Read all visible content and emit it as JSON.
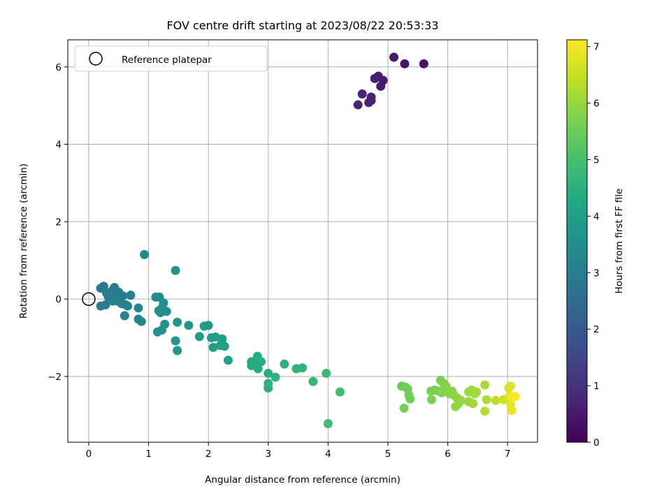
{
  "chart_data": {
    "type": "scatter",
    "title": "FOV centre drift starting at 2023/08/22 20:53:33",
    "xlabel": "Angular distance from reference (arcmin)",
    "ylabel": "Rotation from reference (arcmin)",
    "xlim": [
      -0.35,
      7.5
    ],
    "ylim": [
      -3.7,
      6.7
    ],
    "x_ticks": [
      0,
      1,
      2,
      3,
      4,
      5,
      6,
      7
    ],
    "y_ticks": [
      -2,
      0,
      2,
      4,
      6
    ],
    "grid": true,
    "legend": {
      "placement": "top-left",
      "entries": [
        "Reference platepar"
      ]
    },
    "reference_point": {
      "x": 0,
      "y": 0
    },
    "colorbar": {
      "label": "Hours from first FF file",
      "colormap": "viridis",
      "range": [
        0,
        7.12
      ],
      "ticks": [
        0,
        1,
        2,
        3,
        4,
        5,
        6,
        7
      ]
    },
    "points": [
      {
        "x": 4.5,
        "y": 5.02,
        "c": 0.75
      },
      {
        "x": 4.57,
        "y": 5.3,
        "c": 0.72
      },
      {
        "x": 4.68,
        "y": 5.08,
        "c": 0.7
      },
      {
        "x": 4.72,
        "y": 5.22,
        "c": 0.68
      },
      {
        "x": 4.72,
        "y": 5.13,
        "c": 0.65
      },
      {
        "x": 4.78,
        "y": 5.7,
        "c": 0.62
      },
      {
        "x": 4.84,
        "y": 5.76,
        "c": 0.6
      },
      {
        "x": 4.88,
        "y": 5.5,
        "c": 0.58
      },
      {
        "x": 4.92,
        "y": 5.65,
        "c": 0.55
      },
      {
        "x": 5.1,
        "y": 6.25,
        "c": 0.5
      },
      {
        "x": 5.28,
        "y": 6.08,
        "c": 0.45
      },
      {
        "x": 5.6,
        "y": 6.08,
        "c": 0.4
      },
      {
        "x": 0.2,
        "y": 0.28,
        "c": 2.85
      },
      {
        "x": 0.25,
        "y": 0.33,
        "c": 2.85
      },
      {
        "x": 0.2,
        "y": -0.18,
        "c": 2.95
      },
      {
        "x": 0.28,
        "y": -0.15,
        "c": 2.95
      },
      {
        "x": 0.3,
        "y": 0.15,
        "c": 2.9
      },
      {
        "x": 0.33,
        "y": 0.05,
        "c": 2.9
      },
      {
        "x": 0.38,
        "y": 0.2,
        "c": 2.92
      },
      {
        "x": 0.4,
        "y": -0.05,
        "c": 3.0
      },
      {
        "x": 0.43,
        "y": 0.3,
        "c": 2.92
      },
      {
        "x": 0.45,
        "y": 0.05,
        "c": 3.0
      },
      {
        "x": 0.48,
        "y": -0.05,
        "c": 3.05
      },
      {
        "x": 0.5,
        "y": 0.18,
        "c": 3.0
      },
      {
        "x": 0.52,
        "y": 0.0,
        "c": 3.05
      },
      {
        "x": 0.55,
        "y": -0.12,
        "c": 3.08
      },
      {
        "x": 0.57,
        "y": 0.08,
        "c": 3.05
      },
      {
        "x": 0.6,
        "y": -0.43,
        "c": 3.15
      },
      {
        "x": 0.62,
        "y": -0.15,
        "c": 3.1
      },
      {
        "x": 0.65,
        "y": -0.18,
        "c": 3.12
      },
      {
        "x": 0.7,
        "y": 0.1,
        "c": 3.1
      },
      {
        "x": 0.83,
        "y": -0.23,
        "c": 3.25
      },
      {
        "x": 0.83,
        "y": -0.52,
        "c": 3.3
      },
      {
        "x": 0.88,
        "y": -0.58,
        "c": 3.32
      },
      {
        "x": 0.93,
        "y": 1.15,
        "c": 3.35
      },
      {
        "x": 1.12,
        "y": 0.05,
        "c": 3.45
      },
      {
        "x": 1.15,
        "y": -0.85,
        "c": 3.55
      },
      {
        "x": 1.17,
        "y": -0.3,
        "c": 3.5
      },
      {
        "x": 1.18,
        "y": 0.05,
        "c": 3.48
      },
      {
        "x": 1.2,
        "y": -0.35,
        "c": 3.52
      },
      {
        "x": 1.22,
        "y": -0.8,
        "c": 3.58
      },
      {
        "x": 1.23,
        "y": -0.22,
        "c": 3.52
      },
      {
        "x": 1.25,
        "y": -0.1,
        "c": 3.52
      },
      {
        "x": 1.27,
        "y": -0.65,
        "c": 3.58
      },
      {
        "x": 1.3,
        "y": -0.32,
        "c": 3.55
      },
      {
        "x": 1.45,
        "y": 0.74,
        "c": 3.55
      },
      {
        "x": 1.45,
        "y": -1.08,
        "c": 3.7
      },
      {
        "x": 1.48,
        "y": -1.33,
        "c": 3.72
      },
      {
        "x": 1.48,
        "y": -0.6,
        "c": 3.65
      },
      {
        "x": 1.67,
        "y": -0.68,
        "c": 3.75
      },
      {
        "x": 1.85,
        "y": -0.97,
        "c": 3.85
      },
      {
        "x": 1.93,
        "y": -0.7,
        "c": 3.85
      },
      {
        "x": 2.0,
        "y": -0.68,
        "c": 3.88
      },
      {
        "x": 2.05,
        "y": -1.0,
        "c": 3.92
      },
      {
        "x": 2.08,
        "y": -1.25,
        "c": 3.95
      },
      {
        "x": 2.12,
        "y": -0.98,
        "c": 3.95
      },
      {
        "x": 2.2,
        "y": -1.2,
        "c": 4.0
      },
      {
        "x": 2.23,
        "y": -1.03,
        "c": 4.0
      },
      {
        "x": 2.27,
        "y": -1.22,
        "c": 4.02
      },
      {
        "x": 2.33,
        "y": -1.58,
        "c": 4.1
      },
      {
        "x": 2.72,
        "y": -1.62,
        "c": 4.3
      },
      {
        "x": 2.72,
        "y": -1.72,
        "c": 4.32
      },
      {
        "x": 2.8,
        "y": -1.7,
        "c": 4.35
      },
      {
        "x": 2.82,
        "y": -1.48,
        "c": 4.35
      },
      {
        "x": 2.83,
        "y": -1.8,
        "c": 4.38
      },
      {
        "x": 2.88,
        "y": -1.62,
        "c": 4.4
      },
      {
        "x": 3.0,
        "y": -1.92,
        "c": 4.45
      },
      {
        "x": 3.0,
        "y": -2.18,
        "c": 4.5
      },
      {
        "x": 3.0,
        "y": -2.3,
        "c": 4.52
      },
      {
        "x": 3.12,
        "y": -2.02,
        "c": 4.55
      },
      {
        "x": 3.27,
        "y": -1.68,
        "c": 4.55
      },
      {
        "x": 3.47,
        "y": -1.8,
        "c": 4.62
      },
      {
        "x": 3.57,
        "y": -1.78,
        "c": 4.65
      },
      {
        "x": 3.75,
        "y": -2.13,
        "c": 4.72
      },
      {
        "x": 3.97,
        "y": -1.92,
        "c": 4.78
      },
      {
        "x": 4.0,
        "y": -3.22,
        "c": 4.9
      },
      {
        "x": 4.2,
        "y": -2.4,
        "c": 4.92
      },
      {
        "x": 5.23,
        "y": -2.25,
        "c": 5.5
      },
      {
        "x": 5.27,
        "y": -2.82,
        "c": 5.6
      },
      {
        "x": 5.3,
        "y": -2.28,
        "c": 5.52
      },
      {
        "x": 5.33,
        "y": -2.32,
        "c": 5.55
      },
      {
        "x": 5.35,
        "y": -2.48,
        "c": 5.58
      },
      {
        "x": 5.37,
        "y": -2.58,
        "c": 5.6
      },
      {
        "x": 5.72,
        "y": -2.38,
        "c": 5.68
      },
      {
        "x": 5.73,
        "y": -2.6,
        "c": 5.72
      },
      {
        "x": 5.78,
        "y": -2.35,
        "c": 5.7
      },
      {
        "x": 5.85,
        "y": -2.38,
        "c": 5.72
      },
      {
        "x": 5.88,
        "y": -2.1,
        "c": 5.7
      },
      {
        "x": 5.9,
        "y": -2.42,
        "c": 5.75
      },
      {
        "x": 5.93,
        "y": -2.18,
        "c": 5.75
      },
      {
        "x": 5.97,
        "y": -2.25,
        "c": 5.78
      },
      {
        "x": 6.0,
        "y": -2.35,
        "c": 5.8
      },
      {
        "x": 6.03,
        "y": -2.45,
        "c": 5.82
      },
      {
        "x": 6.07,
        "y": -2.38,
        "c": 5.85
      },
      {
        "x": 6.1,
        "y": -2.48,
        "c": 5.88
      },
      {
        "x": 6.13,
        "y": -2.78,
        "c": 5.92
      },
      {
        "x": 6.15,
        "y": -2.55,
        "c": 5.9
      },
      {
        "x": 6.18,
        "y": -2.7,
        "c": 5.95
      },
      {
        "x": 6.22,
        "y": -2.62,
        "c": 5.95
      },
      {
        "x": 6.35,
        "y": -2.4,
        "c": 6.0
      },
      {
        "x": 6.35,
        "y": -2.65,
        "c": 6.02
      },
      {
        "x": 6.4,
        "y": -2.35,
        "c": 6.05
      },
      {
        "x": 6.42,
        "y": -2.7,
        "c": 6.08
      },
      {
        "x": 6.45,
        "y": -2.45,
        "c": 6.08
      },
      {
        "x": 6.48,
        "y": -2.4,
        "c": 6.1
      },
      {
        "x": 6.62,
        "y": -2.22,
        "c": 6.2
      },
      {
        "x": 6.62,
        "y": -2.9,
        "c": 6.3
      },
      {
        "x": 6.65,
        "y": -2.6,
        "c": 6.25
      },
      {
        "x": 6.8,
        "y": -2.62,
        "c": 6.4
      },
      {
        "x": 6.93,
        "y": -2.6,
        "c": 6.55
      },
      {
        "x": 7.02,
        "y": -2.3,
        "c": 6.7
      },
      {
        "x": 7.03,
        "y": -2.52,
        "c": 6.8
      },
      {
        "x": 7.05,
        "y": -2.25,
        "c": 6.75
      },
      {
        "x": 7.05,
        "y": -2.72,
        "c": 6.85
      },
      {
        "x": 7.07,
        "y": -2.88,
        "c": 6.9
      },
      {
        "x": 7.08,
        "y": -2.52,
        "c": 7.05
      },
      {
        "x": 7.13,
        "y": -2.52,
        "c": 7.1
      }
    ]
  }
}
